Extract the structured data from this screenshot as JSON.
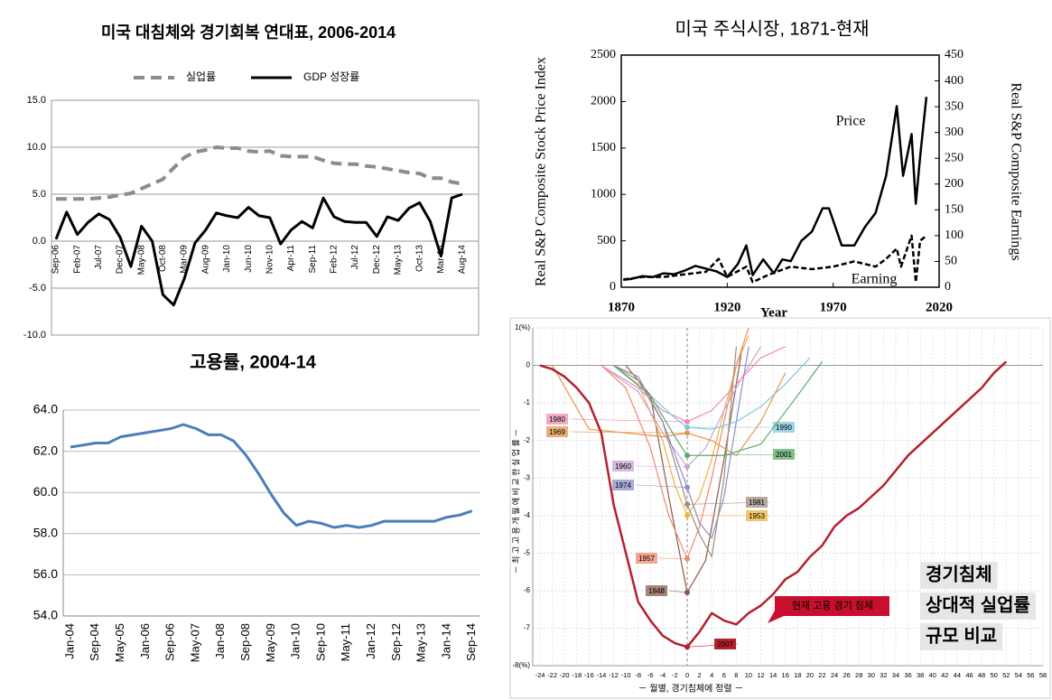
{
  "chart_data": [
    {
      "type": "line",
      "title": "미국 대침체와 경기회복 연대표, 2006-2014",
      "categories": [
        "Sep-06",
        null,
        "Feb-07",
        null,
        "Jul-07",
        null,
        "Dec-07",
        null,
        "May-08",
        null,
        "Oct-08",
        null,
        "Mar-09",
        null,
        "Aug-09",
        null,
        "Jan-10",
        null,
        "Jun-10",
        null,
        "Nov-10",
        null,
        "Apr-11",
        null,
        "Sep-11",
        null,
        "Feb-12",
        null,
        "Jul-12",
        null,
        "Dec-12",
        null,
        "May-13",
        null,
        "Oct-13",
        null,
        "Mar-14",
        null,
        "Aug-14"
      ],
      "series": [
        {
          "name": "실업률",
          "color": "#8c8c8c",
          "dashed": true,
          "values": [
            4.5,
            4.5,
            4.5,
            4.5,
            4.6,
            4.7,
            4.9,
            5.1,
            5.6,
            6.1,
            6.6,
            7.8,
            8.9,
            9.5,
            9.7,
            10.0,
            9.9,
            9.9,
            9.6,
            9.5,
            9.6,
            9.1,
            9.0,
            9.0,
            9.0,
            8.6,
            8.3,
            8.2,
            8.2,
            8.0,
            7.9,
            7.7,
            7.5,
            7.3,
            7.2,
            6.7,
            6.7,
            6.3,
            6.1
          ]
        },
        {
          "name": "GDP 성장률",
          "color": "#000000",
          "dashed": false,
          "values": [
            0.2,
            3.1,
            0.7,
            2.0,
            2.9,
            2.3,
            0.4,
            -2.7,
            1.6,
            0.0,
            -5.7,
            -6.8,
            -4.0,
            -0.2,
            1.2,
            3.0,
            2.7,
            2.5,
            3.6,
            2.7,
            2.5,
            -0.3,
            1.2,
            2.1,
            1.4,
            4.6,
            2.6,
            2.1,
            2.0,
            2.0,
            0.5,
            2.6,
            2.2,
            3.5,
            4.1,
            2.1,
            -1.6,
            4.6,
            5.0
          ]
        }
      ],
      "ylim": [
        -10,
        15
      ],
      "yticks": [
        {
          "value": 15,
          "label": "15.0"
        },
        {
          "value": 10,
          "label": "10.0"
        },
        {
          "value": 5,
          "label": "5.0"
        },
        {
          "value": 0,
          "label": "0.0"
        },
        {
          "value": -5,
          "label": "-5.0"
        },
        {
          "value": -10,
          "label": "-10.0"
        }
      ],
      "grid": true,
      "legend": "top"
    },
    {
      "type": "line",
      "title": "고용률, 2004-14",
      "categories": [
        "Jan-04",
        null,
        "Sep-04",
        null,
        "May-05",
        null,
        "Jan-06",
        null,
        "Sep-06",
        null,
        "May-07",
        null,
        "Jan-08",
        null,
        "Sep-08",
        null,
        "May-09",
        null,
        "Jan-10",
        null,
        "Sep-10",
        null,
        "May-11",
        null,
        "Jan-12",
        null,
        "Sep-12",
        null,
        "May-13",
        null,
        "Jan-14",
        null,
        "Sep-14"
      ],
      "series": [
        {
          "color": "#4a7ebb",
          "values": [
            62.2,
            62.3,
            62.4,
            62.4,
            62.7,
            62.8,
            62.9,
            63.0,
            63.1,
            63.3,
            63.1,
            62.8,
            62.8,
            62.5,
            61.8,
            60.9,
            59.9,
            59.0,
            58.4,
            58.6,
            58.5,
            58.3,
            58.4,
            58.3,
            58.4,
            58.6,
            58.6,
            58.6,
            58.6,
            58.6,
            58.8,
            58.9,
            59.1
          ]
        }
      ],
      "ylim": [
        54,
        64
      ],
      "yticks": [
        {
          "value": 64,
          "label": "64.0"
        },
        {
          "value": 62,
          "label": "62.0"
        },
        {
          "value": 60,
          "label": "60.0"
        },
        {
          "value": 58,
          "label": "58.0"
        },
        {
          "value": 56,
          "label": "56.0"
        },
        {
          "value": 54,
          "label": "54.0"
        }
      ],
      "grid": true
    },
    {
      "type": "line",
      "title": "미국 주식시장, 1871-현재",
      "xlabel": "Year",
      "ylabel": "Real S&P Composite Stock Price Index",
      "y2label": "Real S&P Composite Earnings",
      "annotations": [
        "Price",
        "Earning"
      ],
      "series": [
        {
          "name": "Price",
          "color": "#000000",
          "dashed": false,
          "x": [
            1871,
            1875,
            1880,
            1885,
            1890,
            1895,
            1900,
            1905,
            1910,
            1915,
            1920,
            1925,
            1929,
            1932,
            1937,
            1942,
            1946,
            1950,
            1955,
            1960,
            1965,
            1968,
            1974,
            1980,
            1985,
            1990,
            1995,
            2000,
            2003,
            2007,
            2009,
            2011,
            2014
          ],
          "values": [
            80,
            90,
            120,
            110,
            150,
            140,
            180,
            230,
            200,
            170,
            110,
            250,
            450,
            130,
            300,
            150,
            300,
            280,
            500,
            600,
            850,
            850,
            450,
            450,
            650,
            800,
            1200,
            1950,
            1200,
            1650,
            900,
            1400,
            2050
          ]
        },
        {
          "name": "Earning",
          "color": "#000000",
          "dashed": true,
          "axis": "y2",
          "x": [
            1871,
            1880,
            1890,
            1900,
            1910,
            1916,
            1920,
            1929,
            1932,
            1940,
            1950,
            1960,
            1970,
            1980,
            1990,
            1995,
            2000,
            2002,
            2007,
            2009,
            2011,
            2014
          ],
          "values": [
            15,
            20,
            20,
            25,
            30,
            55,
            20,
            40,
            10,
            25,
            40,
            35,
            40,
            50,
            40,
            55,
            75,
            40,
            100,
            10,
            90,
            100
          ]
        }
      ],
      "xlim": [
        1870,
        2020
      ],
      "xticks": [
        1870,
        1920,
        1970,
        2020
      ],
      "ylim": [
        0,
        2500
      ],
      "yticks": [
        0,
        500,
        1000,
        1500,
        2000,
        2500
      ],
      "y2lim": [
        0,
        450
      ],
      "y2ticks": [
        0,
        50,
        100,
        150,
        200,
        250,
        300,
        350,
        400,
        450
      ]
    },
    {
      "type": "line",
      "ylabel": "－ 최 고 고 용 개 월 에 비 교 한 실 업 률 －",
      "xlabel": "－ 월별, 경기침체에 정렬 －",
      "callout": "현재 고용 경기 침체",
      "note": [
        "경기침체",
        "상대적 실업률",
        "규모 비교"
      ],
      "series": [
        {
          "name": "2007",
          "color": "#b5202e",
          "x": [
            -24,
            -22,
            -20,
            -18,
            -16,
            -14,
            -12,
            -10,
            -8,
            -6,
            -4,
            -2,
            0,
            2,
            4,
            6,
            8,
            10,
            12,
            14,
            16,
            18,
            20,
            22,
            24,
            26,
            28,
            30,
            32,
            34,
            36,
            38,
            40,
            42,
            44,
            46,
            48,
            50,
            52
          ],
          "values": [
            0,
            -0.1,
            -0.3,
            -0.6,
            -1.0,
            -1.8,
            -3.7,
            -5.0,
            -6.3,
            -6.8,
            -7.2,
            -7.4,
            -7.5,
            -7.1,
            -6.6,
            -6.8,
            -6.9,
            -6.6,
            -6.4,
            -6.1,
            -5.7,
            -5.5,
            -5.1,
            -4.8,
            -4.3,
            -4.0,
            -3.8,
            -3.5,
            -3.2,
            -2.8,
            -2.4,
            -2.1,
            -1.8,
            -1.5,
            -1.2,
            -0.9,
            -0.6,
            -0.2,
            0.1
          ]
        },
        {
          "name": "1948",
          "color": "#8b5a4a",
          "x": [
            -10,
            -6,
            -3,
            0,
            3,
            6,
            9
          ],
          "values": [
            0,
            -0.8,
            -3.5,
            -6.05,
            -5.2,
            -2.5,
            0.5
          ]
        },
        {
          "name": "1953",
          "color": "#f0b43c",
          "x": [
            -12,
            -8,
            -4,
            -2,
            0,
            2,
            4,
            6,
            8,
            10
          ],
          "values": [
            0,
            -0.5,
            -2,
            -3.2,
            -4.0,
            -3.5,
            -2.5,
            -1.2,
            0,
            0.8
          ]
        },
        {
          "name": "1957",
          "color": "#f08a6c",
          "x": [
            -14,
            -10,
            -6,
            -3,
            0,
            2,
            4,
            6,
            8,
            10
          ],
          "values": [
            0,
            -0.6,
            -2.2,
            -4,
            -5.15,
            -4.3,
            -3,
            -1.5,
            0,
            1
          ]
        },
        {
          "name": "1960",
          "color": "#c9a4d4",
          "x": [
            -14,
            -8,
            -4,
            0,
            3,
            6,
            9,
            12
          ],
          "values": [
            0,
            -0.7,
            -1.8,
            -2.7,
            -2.2,
            -1.2,
            -0.3,
            0.5
          ]
        },
        {
          "name": "1969",
          "color": "#e3964a",
          "x": [
            -22,
            -16,
            -10,
            -4,
            0,
            4,
            8,
            12,
            16
          ],
          "values": [
            0,
            -1.7,
            -1.8,
            -1.9,
            -1.8,
            -2.0,
            -2.4,
            -1.5,
            -0.2
          ]
        },
        {
          "name": "1974",
          "color": "#8b8fc8",
          "x": [
            -12,
            -8,
            -4,
            0,
            2,
            4,
            6,
            8,
            10
          ],
          "values": [
            0,
            -0.4,
            -1.5,
            -3.25,
            -4.2,
            -4.6,
            -3.5,
            -1.5,
            0.5
          ]
        },
        {
          "name": "1980",
          "color": "#f28cb4",
          "x": [
            -14,
            -8,
            -4,
            0,
            4,
            8,
            12,
            16
          ],
          "values": [
            0,
            -0.6,
            -1.2,
            -1.5,
            -1.2,
            -0.5,
            0.2,
            0.5
          ]
        },
        {
          "name": "1981",
          "color": "#a08c80",
          "x": [
            -12,
            -8,
            -4,
            0,
            2,
            4,
            6,
            8
          ],
          "values": [
            0,
            -0.3,
            -1.5,
            -3.7,
            -4.5,
            -5.1,
            -3,
            0.5
          ]
        },
        {
          "name": "1990",
          "color": "#7fc8dc",
          "x": [
            -12,
            -6,
            -2,
            0,
            4,
            8,
            12,
            16,
            20
          ],
          "values": [
            0,
            -0.8,
            -1.4,
            -1.65,
            -1.7,
            -1.5,
            -1.1,
            -0.5,
            0.2
          ]
        },
        {
          "name": "2001",
          "color": "#5aab6a",
          "x": [
            -12,
            -6,
            -2,
            0,
            6,
            12,
            18,
            22
          ],
          "values": [
            0,
            -0.8,
            -1.9,
            -2.4,
            -2.4,
            -2.1,
            -0.8,
            0.1
          ]
        }
      ],
      "xlim": [
        -24,
        58
      ],
      "xticks": [
        -24,
        -22,
        -20,
        -18,
        -16,
        -14,
        -12,
        -10,
        -8,
        -6,
        -4,
        -2,
        0,
        2,
        4,
        6,
        8,
        10,
        12,
        14,
        16,
        18,
        20,
        22,
        24,
        26,
        28,
        30,
        32,
        34,
        36,
        38,
        40,
        42,
        44,
        46,
        48,
        50,
        52,
        54,
        56,
        58
      ],
      "ylim": [
        -8,
        1
      ],
      "yticks": [
        {
          "value": 1,
          "label": "1(%)"
        },
        0,
        -1,
        -2,
        -3,
        -4,
        -5,
        -6,
        -7,
        {
          "value": -8,
          "label": "-8(%)"
        }
      ],
      "grid": true
    }
  ]
}
